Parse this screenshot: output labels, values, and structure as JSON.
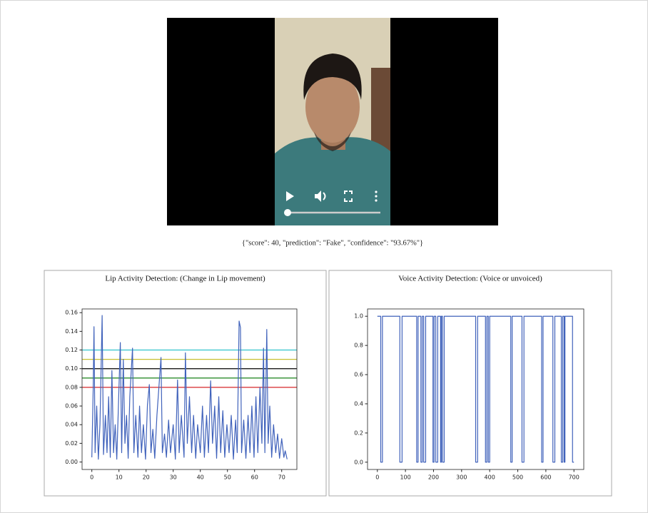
{
  "result_text": "{\"score\": 40, \"prediction\": \"Fake\", \"confidence\": \"93.67%\"}",
  "chart_data": [
    {
      "type": "line",
      "title": "Lip Activity Detection: (Change in Lip movement)",
      "color": "#4062bb",
      "x": [
        0,
        0.5,
        0.8,
        1.2,
        1.8,
        2.4,
        3,
        3.8,
        4.3,
        5,
        5.6,
        6.2,
        6.8,
        7.4,
        8,
        8.6,
        9.2,
        9.8,
        10.5,
        11,
        11.6,
        12.2,
        12.8,
        13.4,
        14,
        15,
        15.5,
        16.2,
        17,
        17.6,
        18.3,
        19,
        19.8,
        20.5,
        21.2,
        21.8,
        22.5,
        23.2,
        24,
        25.5,
        26,
        26.8,
        27.5,
        28.3,
        29,
        30,
        30.8,
        31.6,
        32.2,
        33,
        34,
        34.5,
        35.2,
        36,
        36.8,
        37.5,
        38.3,
        39,
        40,
        40.8,
        41.5,
        42.3,
        43,
        43.8,
        44.5,
        45.3,
        46,
        46.8,
        47.5,
        48.3,
        49,
        49.8,
        50.6,
        51.4,
        52.2,
        53,
        53.6,
        54.3,
        54.8,
        55.2,
        56,
        56.8,
        57.6,
        58.3,
        59,
        59.8,
        60.5,
        61.2,
        62,
        62.7,
        63.3,
        63.8,
        64.5,
        65,
        65.6,
        66.3,
        67,
        67.8,
        68.5,
        69.2,
        70,
        70.8,
        71.3,
        72
      ],
      "values": [
        0.005,
        0.078,
        0.145,
        0.01,
        0.06,
        0.003,
        0.04,
        0.157,
        0.008,
        0.05,
        0.01,
        0.07,
        0.005,
        0.098,
        0.01,
        0.04,
        0.003,
        0.06,
        0.128,
        0.01,
        0.11,
        0.02,
        0.05,
        0.004,
        0.07,
        0.122,
        0.01,
        0.05,
        0.005,
        0.06,
        0.01,
        0.04,
        0.003,
        0.061,
        0.083,
        0.01,
        0.035,
        0.004,
        0.05,
        0.112,
        0.01,
        0.03,
        0.005,
        0.045,
        0.01,
        0.04,
        0.003,
        0.088,
        0.01,
        0.05,
        0.005,
        0.117,
        0.02,
        0.07,
        0.01,
        0.05,
        0.004,
        0.04,
        0.01,
        0.06,
        0.005,
        0.05,
        0.01,
        0.087,
        0.02,
        0.06,
        0.004,
        0.07,
        0.01,
        0.055,
        0.005,
        0.04,
        0.01,
        0.05,
        0.003,
        0.045,
        0.01,
        0.151,
        0.144,
        0.01,
        0.045,
        0.004,
        0.05,
        0.01,
        0.06,
        0.005,
        0.07,
        0.01,
        0.08,
        0.02,
        0.122,
        0.01,
        0.142,
        0.02,
        0.06,
        0.005,
        0.04,
        0.01,
        0.03,
        0.004,
        0.025,
        0.005,
        0.012,
        0.003
      ],
      "hlines": [
        {
          "value": 0.12,
          "color": "#40c8d0"
        },
        {
          "value": 0.11,
          "color": "#c8c030"
        },
        {
          "value": 0.1,
          "color": "#000000"
        },
        {
          "value": 0.09,
          "color": "#2c8c2c"
        },
        {
          "value": 0.08,
          "color": "#d62728"
        }
      ],
      "xlim": [
        -3.6,
        75.6
      ],
      "ylim": [
        -0.008,
        0.164
      ],
      "xticks": [
        0,
        10,
        20,
        30,
        40,
        50,
        60,
        70
      ],
      "yticks": [
        {
          "value": 0,
          "label": "0.00"
        },
        {
          "value": 0.02,
          "label": "0.02"
        },
        {
          "value": 0.04,
          "label": "0.04"
        },
        {
          "value": 0.06,
          "label": "0.06"
        },
        {
          "value": 0.08,
          "label": "0.08"
        },
        {
          "value": 0.1,
          "label": "0.10"
        },
        {
          "value": 0.12,
          "label": "0.12"
        },
        {
          "value": 0.14,
          "label": "0.14"
        },
        {
          "value": 0.16,
          "label": "0.16"
        }
      ]
    },
    {
      "type": "line",
      "title": "Voice Activity Detection: (Voice or unvoiced)",
      "color": "#4062bb",
      "x": [
        0,
        12,
        12,
        18,
        18,
        80,
        80,
        88,
        88,
        140,
        140,
        145,
        145,
        155,
        155,
        160,
        160,
        165,
        165,
        172,
        172,
        198,
        198,
        202,
        202,
        208,
        208,
        215,
        215,
        225,
        225,
        228,
        228,
        232,
        232,
        238,
        238,
        350,
        350,
        357,
        357,
        385,
        385,
        390,
        390,
        395,
        395,
        400,
        400,
        475,
        475,
        480,
        480,
        515,
        515,
        522,
        522,
        585,
        585,
        590,
        590,
        625,
        625,
        632,
        632,
        655,
        655,
        660,
        660,
        665,
        665,
        668,
        668,
        695,
        695,
        700
      ],
      "values": [
        1,
        1,
        0,
        0,
        1,
        1,
        0,
        0,
        1,
        1,
        0,
        0,
        1,
        1,
        0,
        0,
        1,
        1,
        0,
        0,
        1,
        1,
        0,
        0,
        1,
        1,
        0,
        0,
        1,
        1,
        0,
        0,
        1,
        1,
        0,
        0,
        1,
        1,
        0,
        0,
        1,
        1,
        0,
        0,
        1,
        1,
        0,
        0,
        1,
        1,
        0,
        0,
        1,
        1,
        0,
        0,
        1,
        1,
        0,
        0,
        1,
        1,
        0,
        0,
        1,
        1,
        0,
        0,
        1,
        1,
        0,
        0,
        1,
        1,
        0,
        0
      ],
      "xlim": [
        -35,
        735
      ],
      "ylim": [
        -0.05,
        1.05
      ],
      "xticks": [
        0,
        100,
        200,
        300,
        400,
        500,
        600,
        700
      ],
      "yticks": [
        {
          "value": 0,
          "label": "0.0"
        },
        {
          "value": 0.2,
          "label": "0.2"
        },
        {
          "value": 0.4,
          "label": "0.4"
        },
        {
          "value": 0.6,
          "label": "0.6"
        },
        {
          "value": 0.8,
          "label": "0.8"
        },
        {
          "value": 1,
          "label": "1.0"
        }
      ]
    }
  ]
}
